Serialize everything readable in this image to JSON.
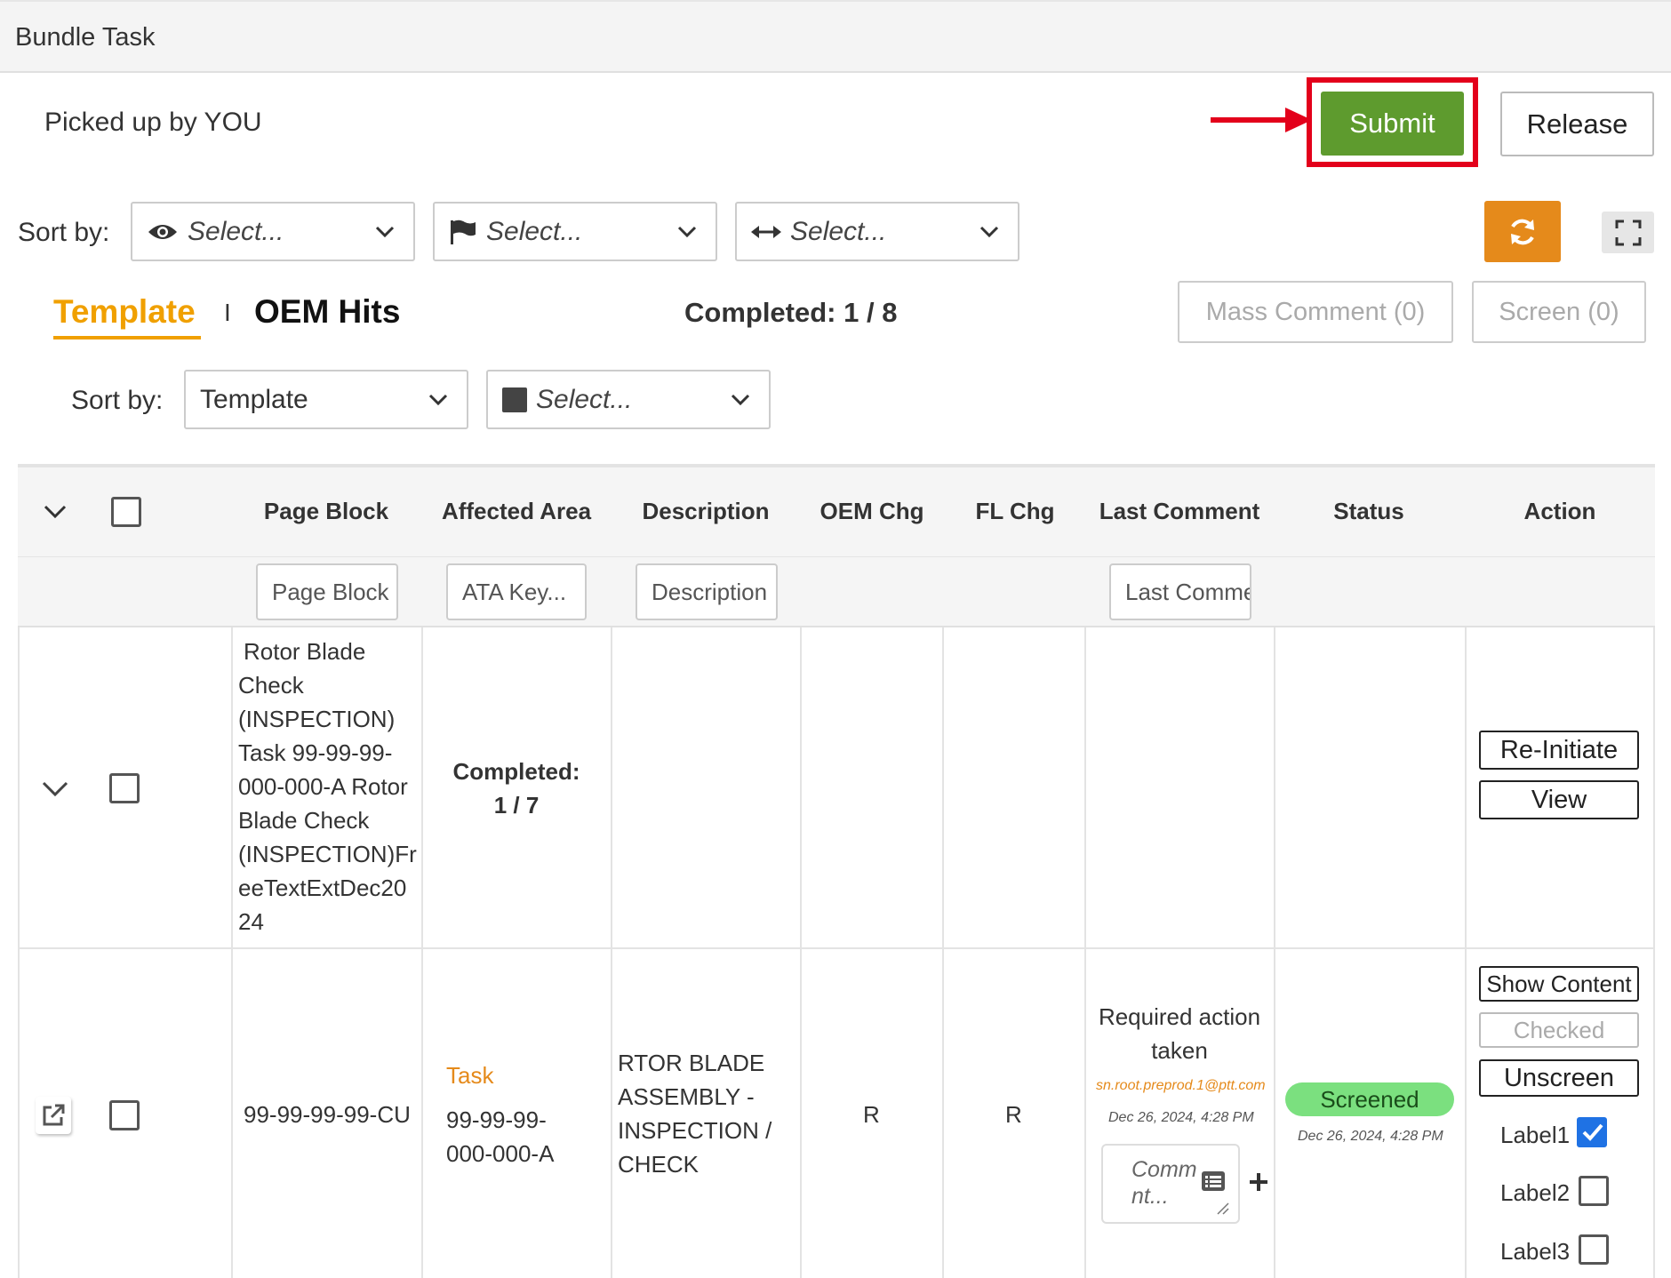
{
  "window": {
    "title": "Bundle Task"
  },
  "header": {
    "picked_up": "Picked up by YOU",
    "submit_label": "Submit",
    "release_label": "Release"
  },
  "sort_bar": {
    "label": "Sort by:",
    "selects": [
      {
        "icon": "eye-icon",
        "placeholder": "Select..."
      },
      {
        "icon": "flag-icon",
        "placeholder": "Select..."
      },
      {
        "icon": "arrows-horizontal-icon",
        "placeholder": "Select..."
      }
    ]
  },
  "tabs": {
    "template": "Template",
    "separator": "I",
    "oem_hits": "OEM Hits",
    "active": "Template"
  },
  "completed": "Completed: 1 / 8",
  "actions": {
    "mass_comment": "Mass Comment (0)",
    "screen": "Screen (0)"
  },
  "sub_sort": {
    "label": "Sort by:",
    "value": "Template",
    "placeholder": "Select..."
  },
  "table": {
    "columns": [
      "Page Block",
      "Affected Area",
      "Description",
      "OEM Chg",
      "FL Chg",
      "Last Comment",
      "Status",
      "Action"
    ],
    "filters": {
      "page_block": "Page Block",
      "affected_area": "ATA Key...",
      "description": "Description",
      "last_comment": "Last Comment"
    },
    "group_row": {
      "page_block": "Rotor Blade Check (INSPECTION) Task 99-99-99-000-000-A Rotor Blade Check (INSPECTION)FreeTextExtDec2024",
      "page_block_lines": [
        "Rotor Blade",
        "Check",
        "(INSPECTION)",
        "Task 99-99-99-",
        "000-000-A Rotor",
        "Blade Check",
        "(INSPECTION)Fr",
        "eeTextExtDec20",
        "24"
      ],
      "completed_label": "Completed:",
      "completed_value": "1 / 7",
      "actions": [
        "Re-Initiate",
        "View"
      ]
    },
    "task_row": {
      "page_block": "99-99-99-99-CU",
      "affected_area_link": "Task",
      "affected_area_lines": [
        "99-99-99-",
        "000-000-A"
      ],
      "description_lines": [
        "RTOR BLADE",
        "ASSEMBLY -",
        "INSPECTION /",
        "CHECK"
      ],
      "oem_chg": "R",
      "fl_chg": "R",
      "last_comment_lines": [
        "Required action",
        "taken"
      ],
      "comment_email": "sn.root.preprod.1@ptt.com",
      "comment_date": "Dec 26, 2024, 4:28 PM",
      "comment_placeholder_lines": [
        "Comm",
        "nt..."
      ],
      "status": "Screened",
      "status_date": "Dec 26, 2024, 4:28 PM",
      "status_color": "#7be07f",
      "actions": [
        "Show Content",
        "Checked",
        "Unscreen"
      ],
      "labels": [
        {
          "name": "Label1",
          "checked": true
        },
        {
          "name": "Label2",
          "checked": false
        },
        {
          "name": "Label3",
          "checked": false
        }
      ]
    }
  },
  "colors": {
    "accent": "#f0a000",
    "submit": "#5e9b2e",
    "refresh": "#e58a1b",
    "annotation": "#e3001b"
  }
}
